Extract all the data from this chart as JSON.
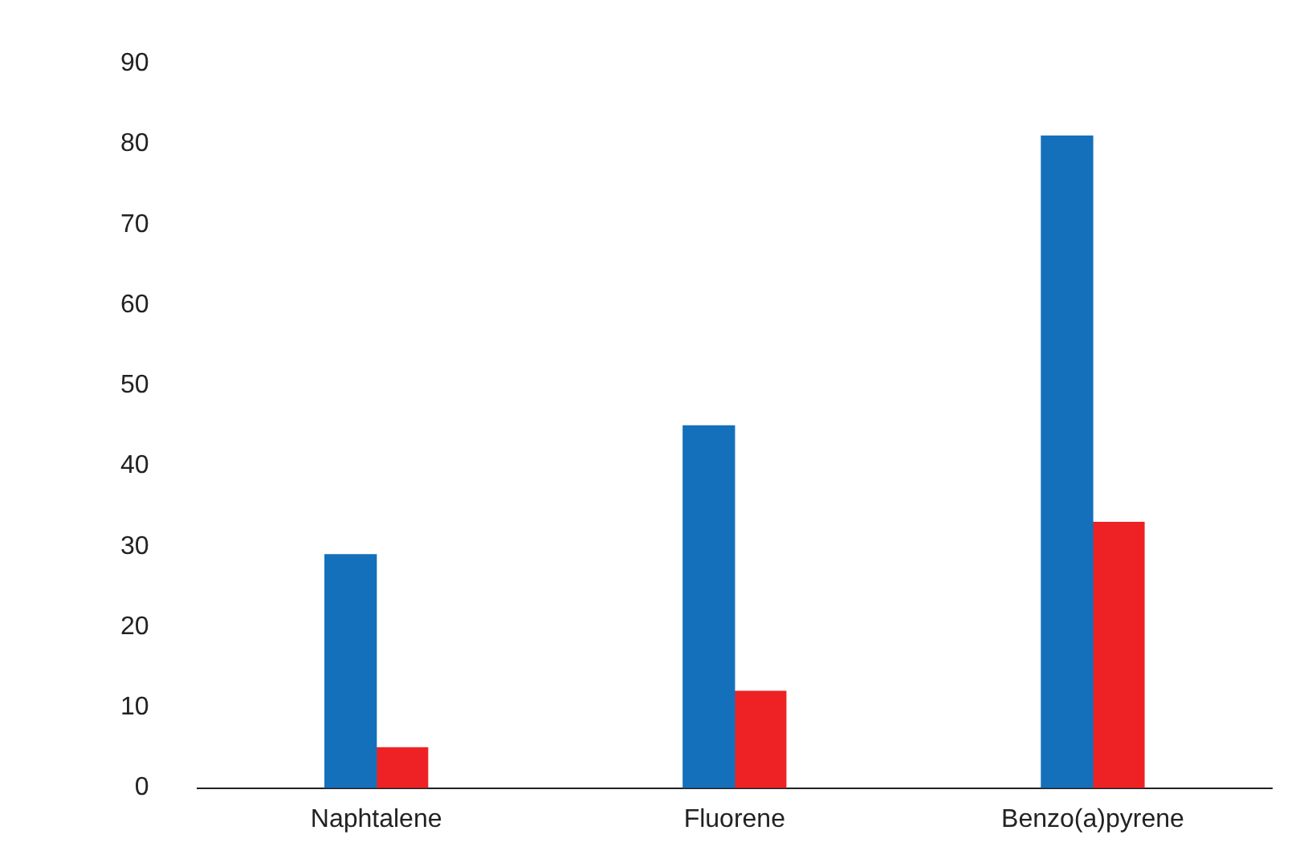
{
  "chart_data": {
    "type": "bar",
    "categories": [
      "Naphtalene",
      "Fluorene",
      "Benzo(a)pyrene"
    ],
    "series": [
      {
        "color": "#1470bb",
        "values": [
          29,
          45,
          81
        ]
      },
      {
        "color": "#ee2224",
        "values": [
          5,
          12,
          33
        ]
      }
    ],
    "ylim": [
      0,
      90
    ],
    "yticks": [
      0,
      10,
      20,
      30,
      40,
      50,
      60,
      70,
      80,
      90
    ],
    "grid": false,
    "legend": false
  }
}
